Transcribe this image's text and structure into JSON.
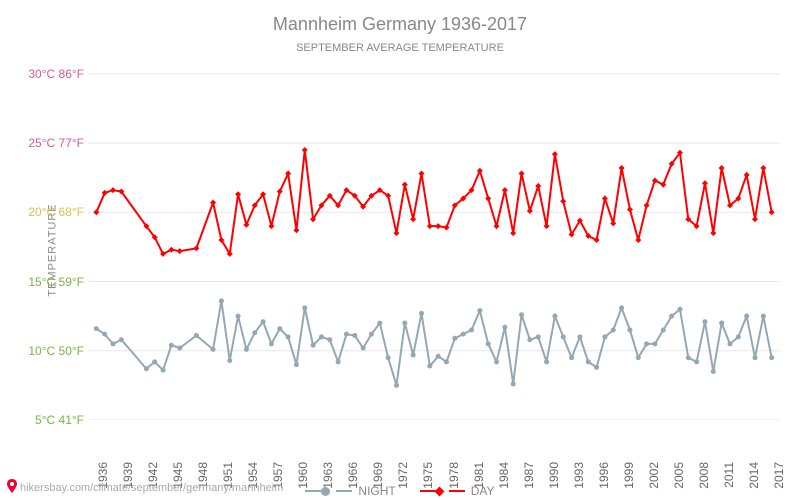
{
  "title": "Mannheim Germany 1936-2017",
  "subtitle": "September Average Temperature",
  "ylabel": "Temperature",
  "attribution": "hikersbay.com/climate/september/germany/mannheim",
  "chart": {
    "type": "line",
    "background_color": "#ffffff",
    "grid_color": "#e8e8e8",
    "title_fontsize": 18,
    "subtitle_fontsize": 11,
    "ylabel_fontsize": 11,
    "xtick_fontsize": 12,
    "ytick_fontsize": 12,
    "xlim": [
      1935,
      2018
    ],
    "ylim": [
      5,
      31
    ],
    "ytick_vals_c": [
      5,
      10,
      15,
      20,
      25,
      30
    ],
    "yticks": [
      {
        "c": "5°C",
        "f": "41°F",
        "color": "#7cb342"
      },
      {
        "c": "10°C",
        "f": "50°F",
        "color": "#7cb342"
      },
      {
        "c": "15°C",
        "f": "59°F",
        "color": "#7cb342"
      },
      {
        "c": "20°C",
        "f": "68°F",
        "color": "#d6c24a"
      },
      {
        "c": "25°C",
        "f": "77°F",
        "color": "#d65a9a"
      },
      {
        "c": "30°C",
        "f": "86°F",
        "color": "#d65a9a"
      }
    ],
    "xtick_vals": [
      1936,
      1939,
      1942,
      1945,
      1948,
      1951,
      1954,
      1957,
      1960,
      1963,
      1966,
      1969,
      1972,
      1975,
      1978,
      1981,
      1984,
      1987,
      1990,
      1993,
      1996,
      1999,
      2002,
      2005,
      2008,
      2011,
      2014,
      2017
    ],
    "xtick_labels": [
      "1936",
      "1939",
      "1942",
      "1945",
      "1948",
      "1951",
      "1954",
      "1957",
      "1960",
      "1963",
      "1966",
      "1969",
      "1972",
      "1975",
      "1978",
      "1981",
      "1984",
      "1987",
      "1990",
      "1993",
      "1996",
      "1999",
      "2002",
      "2005",
      "2008",
      "2011",
      "2014",
      "2017"
    ],
    "series": {
      "day": {
        "label": "DAY",
        "color": "#ff0000",
        "marker": "diamond",
        "marker_size": 6,
        "line_width": 2,
        "x": [
          1936,
          1937,
          1938,
          1939,
          1942,
          1943,
          1944,
          1945,
          1946,
          1948,
          1950,
          1951,
          1952,
          1953,
          1954,
          1955,
          1956,
          1957,
          1958,
          1959,
          1960,
          1961,
          1962,
          1963,
          1964,
          1965,
          1966,
          1967,
          1968,
          1969,
          1970,
          1971,
          1972,
          1973,
          1974,
          1975,
          1976,
          1977,
          1978,
          1979,
          1980,
          1981,
          1982,
          1983,
          1984,
          1985,
          1986,
          1987,
          1988,
          1989,
          1990,
          1991,
          1992,
          1993,
          1994,
          1995,
          1996,
          1997,
          1998,
          1999,
          2000,
          2001,
          2002,
          2003,
          2004,
          2005,
          2006,
          2007,
          2008,
          2009,
          2010,
          2011,
          2012,
          2013,
          2014,
          2015,
          2016,
          2017
        ],
        "y": [
          20.0,
          21.4,
          21.6,
          21.5,
          19.0,
          18.2,
          17.0,
          17.3,
          17.2,
          17.4,
          20.7,
          18.0,
          17.0,
          21.3,
          19.1,
          20.5,
          21.3,
          19.0,
          21.5,
          22.8,
          18.7,
          24.5,
          19.5,
          20.5,
          21.2,
          20.5,
          21.6,
          21.2,
          20.4,
          21.2,
          21.6,
          21.2,
          18.5,
          22.0,
          19.5,
          22.8,
          19.0,
          19.0,
          18.9,
          20.5,
          21.0,
          21.6,
          23.0,
          21.0,
          19.0,
          21.6,
          18.5,
          22.8,
          20.1,
          21.9,
          19.0,
          24.2,
          20.8,
          18.4,
          19.4,
          18.3,
          18.0,
          21.0,
          19.2,
          23.2,
          20.2,
          18.0,
          20.5,
          22.3,
          22.0,
          23.5,
          24.3,
          19.5,
          19.0,
          22.1,
          18.5,
          23.2,
          20.5,
          21.0,
          22.7,
          19.5,
          23.2,
          20.0
        ]
      },
      "night": {
        "label": "NIGHT",
        "color": "#93a8b3",
        "marker": "circle",
        "marker_size": 5,
        "line_width": 2,
        "x": [
          1936,
          1937,
          1938,
          1939,
          1942,
          1943,
          1944,
          1945,
          1946,
          1948,
          1950,
          1951,
          1952,
          1953,
          1954,
          1955,
          1956,
          1957,
          1958,
          1959,
          1960,
          1961,
          1962,
          1963,
          1964,
          1965,
          1966,
          1967,
          1968,
          1969,
          1970,
          1971,
          1972,
          1973,
          1974,
          1975,
          1976,
          1977,
          1978,
          1979,
          1980,
          1981,
          1982,
          1983,
          1984,
          1985,
          1986,
          1987,
          1988,
          1989,
          1990,
          1991,
          1992,
          1993,
          1994,
          1995,
          1996,
          1997,
          1998,
          1999,
          2000,
          2001,
          2002,
          2003,
          2004,
          2005,
          2006,
          2007,
          2008,
          2009,
          2010,
          2011,
          2012,
          2013,
          2014,
          2015,
          2016,
          2017
        ],
        "y": [
          11.6,
          11.2,
          10.5,
          10.8,
          8.7,
          9.2,
          8.6,
          10.4,
          10.2,
          11.1,
          10.1,
          13.6,
          9.3,
          12.5,
          10.1,
          11.3,
          12.1,
          10.5,
          11.6,
          11.0,
          9.0,
          13.1,
          10.4,
          11.0,
          10.8,
          9.2,
          11.2,
          11.1,
          10.2,
          11.2,
          12.0,
          9.5,
          7.5,
          12.0,
          9.7,
          12.7,
          8.9,
          9.6,
          9.2,
          10.9,
          11.2,
          11.5,
          12.9,
          10.5,
          9.2,
          11.7,
          7.6,
          12.6,
          10.8,
          11.0,
          9.2,
          12.5,
          11.0,
          9.5,
          11.0,
          9.2,
          8.8,
          11.0,
          11.5,
          13.1,
          11.5,
          9.5,
          10.5,
          10.5,
          11.5,
          12.5,
          13.0,
          9.5,
          9.2,
          12.1,
          8.5,
          12.0,
          10.5,
          11.0,
          12.5,
          9.5,
          12.5,
          9.5
        ]
      }
    },
    "legend_order": [
      "night",
      "day"
    ]
  }
}
